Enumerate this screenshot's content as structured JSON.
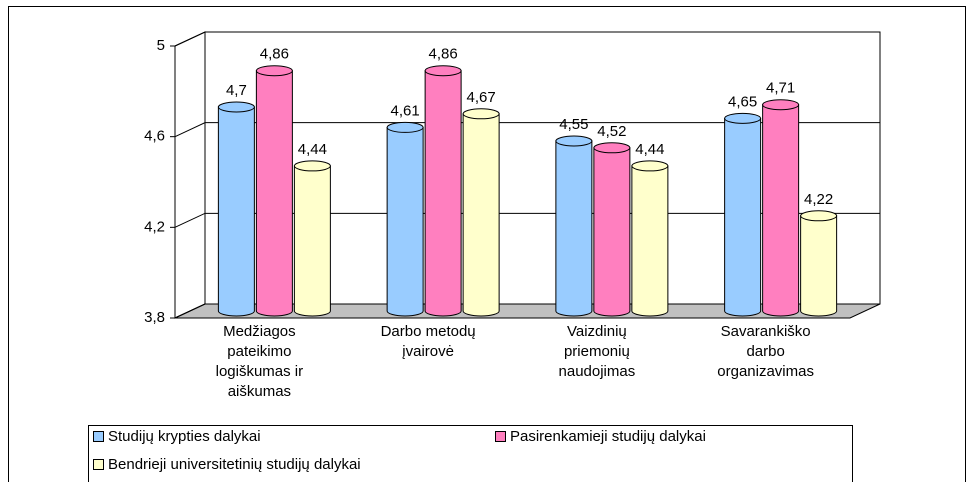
{
  "chart_data": {
    "type": "bar3d",
    "categories": [
      "Medžiagos pateikimo logiškumas ir aiškumas",
      "Darbo metodų įvairovė",
      "Vaizdinių priemonių naudojimas",
      "Savarankiško darbo organizavimas"
    ],
    "series": [
      {
        "name": "Studijų krypties dalykai",
        "color": "#99ccff",
        "values": [
          4.7,
          4.61,
          4.55,
          4.65
        ],
        "value_labels": [
          "4,7",
          "4,61",
          "4,55",
          "4,65"
        ]
      },
      {
        "name": "Pasirenkamieji studijų dalykai",
        "color": "#ff7fbf",
        "values": [
          4.86,
          4.86,
          4.52,
          4.71
        ],
        "value_labels": [
          "4,86",
          "4,86",
          "4,52",
          "4,71"
        ]
      },
      {
        "name": "Bendrieji universitetinių studijų dalykai",
        "color": "#ffffcc",
        "values": [
          4.44,
          4.67,
          4.44,
          4.22
        ],
        "value_labels": [
          "4,44",
          "4,67",
          "4,44",
          "4,22"
        ]
      }
    ],
    "ylim": [
      3.8,
      5
    ],
    "yticks": [
      {
        "value": 3.8,
        "label": "3,8"
      },
      {
        "value": 4.2,
        "label": "4,2"
      },
      {
        "value": 4.6,
        "label": "4,6"
      },
      5
    ],
    "grid": true,
    "legend": "bottom"
  }
}
